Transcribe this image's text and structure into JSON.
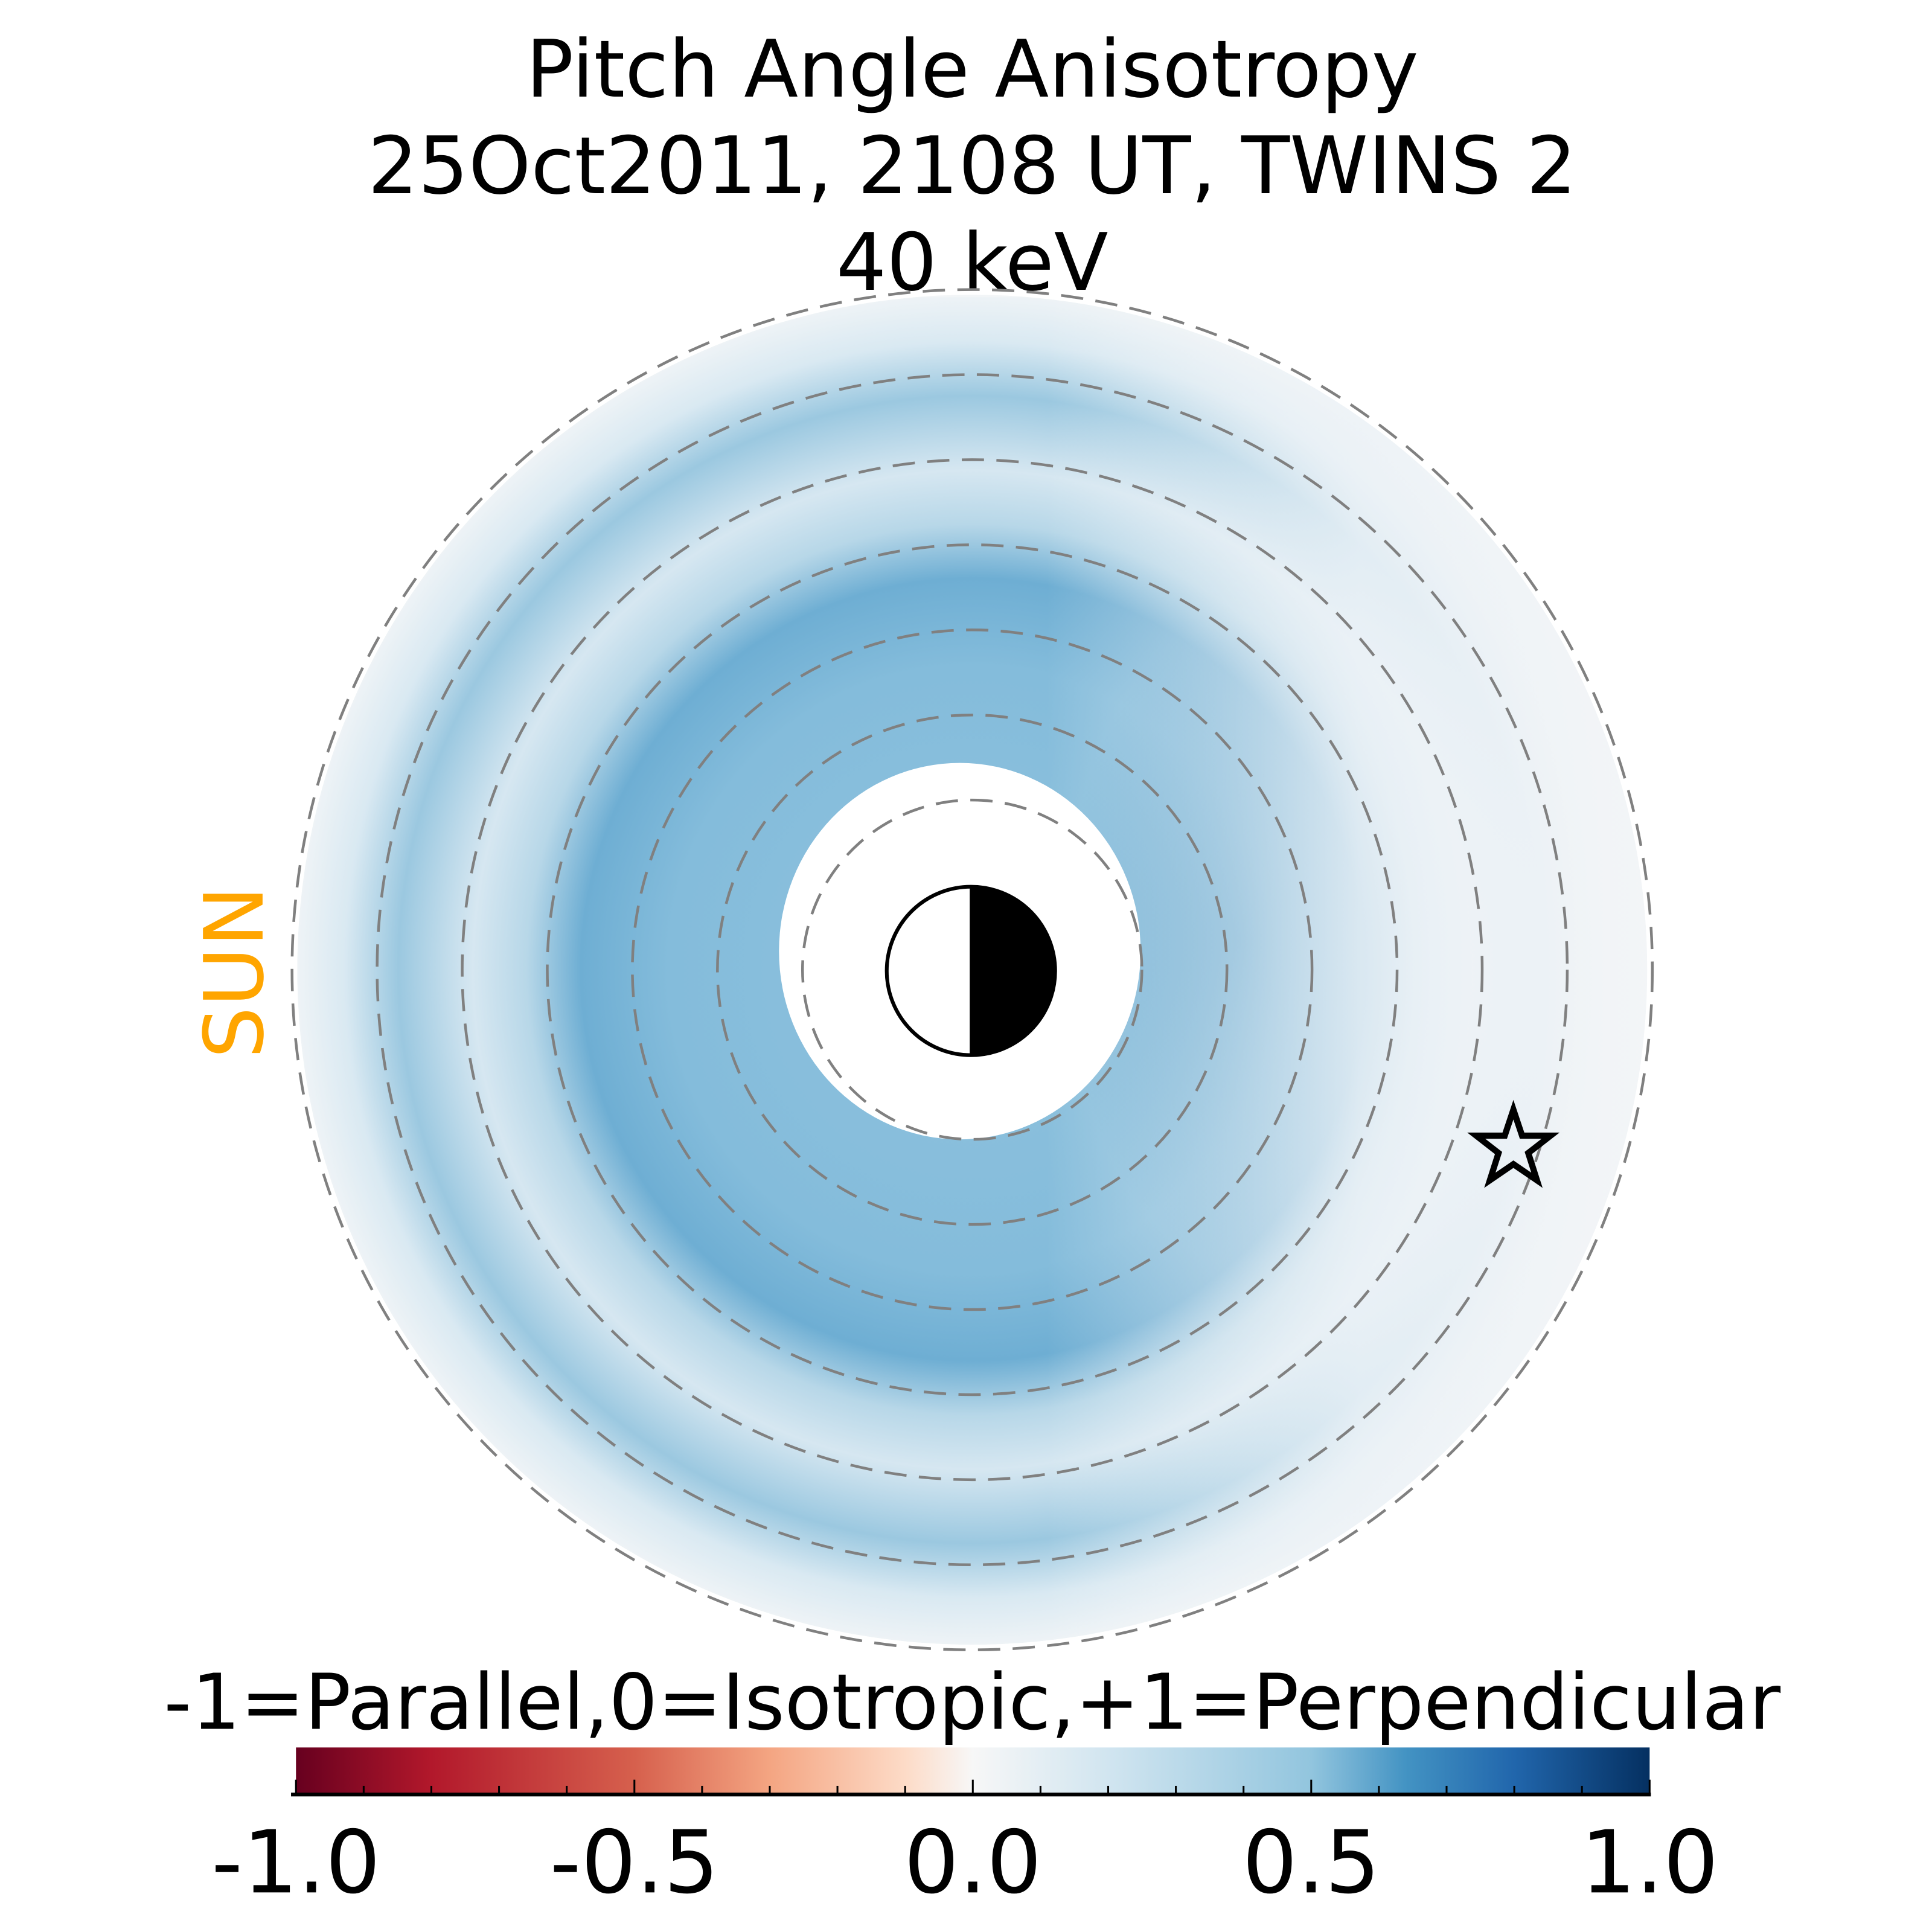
{
  "chart_data": {
    "type": "heatmap",
    "title_lines": [
      "Pitch Angle Anisotropy",
      "25Oct2011, 2108 UT,  TWINS 2",
      "40 keV"
    ],
    "sun_label": "SUN",
    "colorbar": {
      "label": "-1=Parallel,0=Isotropic,+1=Perpendicular",
      "colormap": "RdBu",
      "range": [
        -1.0,
        1.0
      ],
      "ticks": [
        -1.0,
        -0.5,
        0.0,
        0.5,
        1.0
      ],
      "tick_labels": [
        "-1.0",
        "-0.5",
        "0.0",
        "0.5",
        "1.0"
      ],
      "minor_tick_step": 0.1
    },
    "grid": {
      "dashed_circles": 7,
      "color": "#808080"
    },
    "description_values": {
      "inner_ring_value": 0.4,
      "dusk_dawn_peak_value": 0.55,
      "outer_value": 0.05
    },
    "markers": [
      {
        "type": "star",
        "name": "spacecraft-position"
      }
    ],
    "earth": {
      "day_side": "left",
      "night_side": "right"
    },
    "colors": {
      "sun": "#FFA500",
      "grid": "#808080",
      "earth_night": "#000000"
    }
  }
}
